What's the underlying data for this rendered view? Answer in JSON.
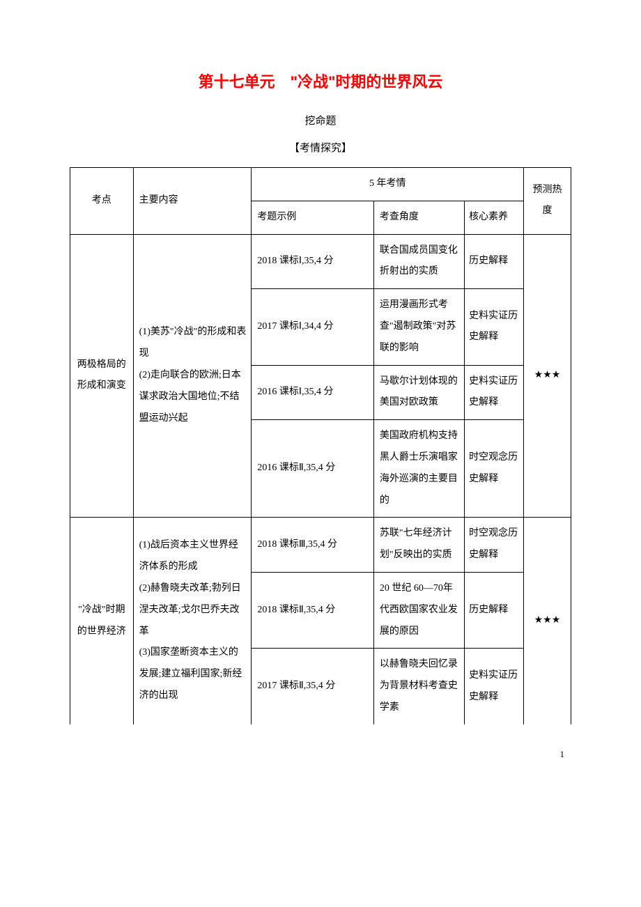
{
  "title": "第十七单元　\"冷战\"时期的世界风云",
  "subtitle": "挖命题",
  "section_header": "【考情探究】",
  "table": {
    "headers": {
      "col1": "考点",
      "col2": "主要内容",
      "col3_merged": "5 年考情",
      "col3": "考题示例",
      "col4": "考查角度",
      "col5": "核心素养",
      "col6": "预测热度"
    },
    "section1": {
      "topic": "两极格局的形成和演变",
      "content": "(1)美苏\"冷战\"的形成和表现\n(2)走向联合的欧洲;日本谋求政治大国地位;不结盟运动兴起",
      "heat": "★★★",
      "rows": [
        {
          "exam": "2018 课标Ⅰ,35,4 分",
          "angle": "联合国成员国变化折射出的实质",
          "literacy": "历史解释"
        },
        {
          "exam": "2017 课标Ⅰ,34,4 分",
          "angle": "运用漫画形式考查\"遏制政策\"对苏联的影响",
          "literacy": "史料实证历史解释"
        },
        {
          "exam": "2016 课标Ⅰ,35,4 分",
          "angle": "马歇尔计划体现的美国对欧政策",
          "literacy": "史料实证历史解释"
        },
        {
          "exam": "2016 课标Ⅱ,35,4 分",
          "angle": "美国政府机构支持黑人爵士乐演唱家海外巡演的主要目的",
          "literacy": "时空观念历史解释"
        }
      ]
    },
    "section2": {
      "topic": "\"冷战\"时期的世界经济",
      "content": "(1)战后资本主义世界经济体系的形成\n(2)赫鲁晓夫改革;勃列日涅夫改革;戈尔巴乔夫改革\n(3)国家垄断资本主义的发展;建立福利国家;新经济的出现",
      "heat": "★★★",
      "rows": [
        {
          "exam": "2018 课标Ⅲ,35,4 分",
          "angle": "苏联\"七年经济计划\"反映出的实质",
          "literacy": "时空观念历史解释"
        },
        {
          "exam": "2018 课标Ⅱ,35,4 分",
          "angle": "20 世纪 60—70年代西欧国家农业发展的原因",
          "literacy": "历史解释"
        },
        {
          "exam": "2017 课标Ⅱ,35,4 分",
          "angle": "以赫鲁晓夫回忆录为背景材料考查史学素",
          "literacy": "史料实证历史解释"
        }
      ]
    }
  },
  "page_number": "1"
}
